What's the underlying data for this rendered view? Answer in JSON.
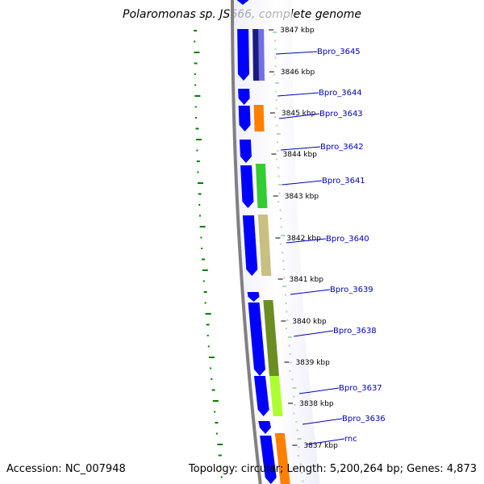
{
  "title": "Polaromonas sp. JS666, complete genome",
  "accession_text": "Accession: NC_007948",
  "summary_text": "Topology: circular; Length: 5,200,264 bp; Genes: 4,873",
  "colors": {
    "backbone": "#808080",
    "forward_strand": "#0000ff",
    "gene_label": "#0000bb",
    "gc_skew_dash": "#008000"
  },
  "ticks": [
    {
      "label": "3847 kbp"
    },
    {
      "label": "3846 kbp"
    },
    {
      "label": "3845 kbp"
    },
    {
      "label": "3844 kbp"
    },
    {
      "label": "3843 kbp"
    },
    {
      "label": "3842 kbp"
    },
    {
      "label": "3841 kbp"
    },
    {
      "label": "3840 kbp"
    },
    {
      "label": "3839 kbp"
    },
    {
      "label": "3838 kbp"
    },
    {
      "label": "3837 kbp"
    }
  ],
  "gene_labels": [
    {
      "label": "Bpro_3645"
    },
    {
      "label": "Bpro_3644"
    },
    {
      "label": "Bpro_3643"
    },
    {
      "label": "Bpro_3642"
    },
    {
      "label": "Bpro_3641"
    },
    {
      "label": "Bpro_3640"
    },
    {
      "label": "Bpro_3639"
    },
    {
      "label": "Bpro_3638"
    },
    {
      "label": "Bpro_3637"
    },
    {
      "label": "Bpro_3636"
    },
    {
      "label": "rnc"
    }
  ],
  "cds_colors": [
    "#0000ff",
    "#1a1a80",
    "#7070e0",
    "#ff8000",
    "#33cc33",
    "#c8c080",
    "#6b8e23",
    "#adff2f"
  ]
}
